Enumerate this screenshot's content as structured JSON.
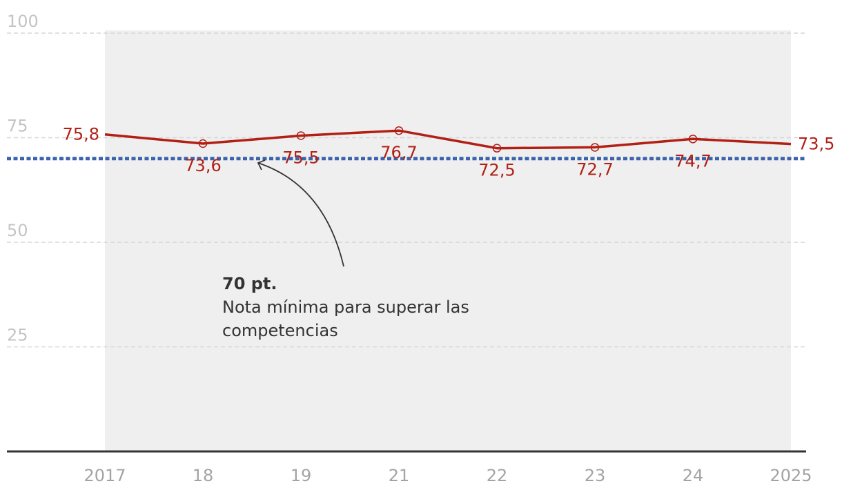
{
  "chart_data": {
    "type": "line",
    "categories": [
      "2017",
      "18",
      "19",
      "21",
      "22",
      "23",
      "24",
      "2025"
    ],
    "series": [
      {
        "values": [
          75.8,
          73.6,
          75.5,
          76.7,
          72.5,
          72.7,
          74.7,
          73.5
        ]
      }
    ],
    "data_labels": [
      "75,8",
      "73,6",
      "75,5",
      "76,7",
      "72,5",
      "72,7",
      "74,7",
      "73,5"
    ],
    "ylim": [
      0,
      100
    ],
    "yticks": [
      "25",
      "50",
      "75",
      "100"
    ],
    "ytick_values": [
      25,
      50,
      75,
      100
    ],
    "grid": true,
    "reference_line": {
      "value": 70
    },
    "annotation": {
      "title": "70 pt.",
      "lines": [
        "Nota mínima para superar las",
        "competencias"
      ]
    },
    "colors": {
      "series": "#b21f14",
      "reference": "#3a63ad",
      "shading": "#efefef",
      "grid": "#d6d6d6",
      "axis": "#333333"
    }
  }
}
